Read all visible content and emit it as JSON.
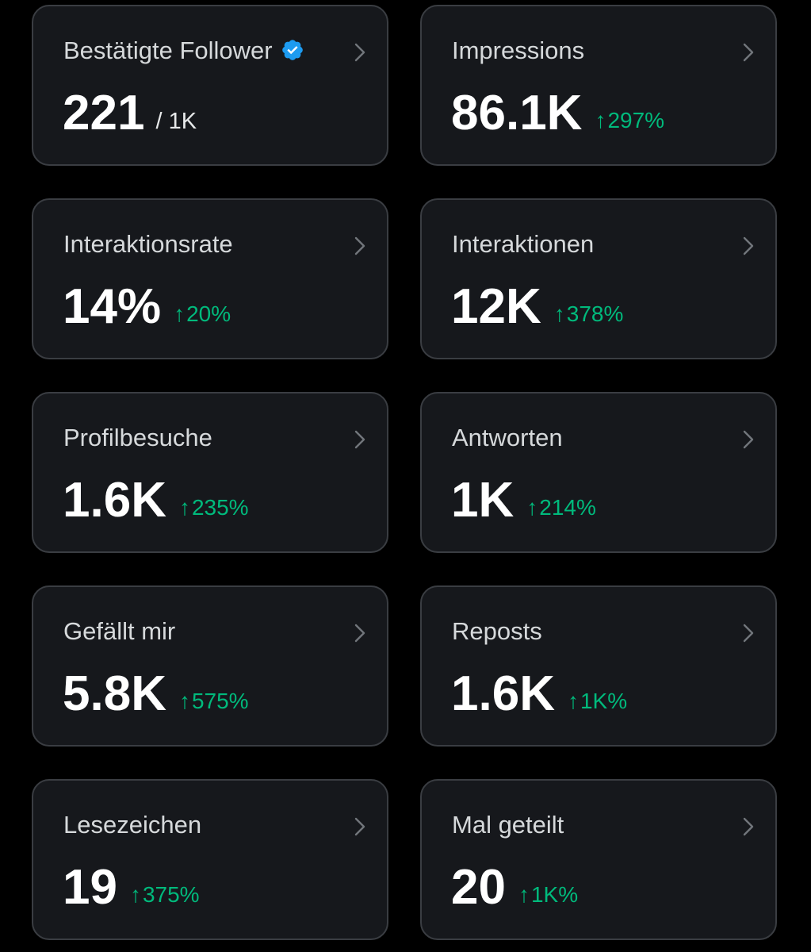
{
  "theme": {
    "background": "#000000",
    "card_bg": "#16181c",
    "card_border": "#3a3d42",
    "positive": "#00ba7c",
    "verified": "#1d9bf0"
  },
  "cards": [
    {
      "title": "Bestätigte Follower",
      "value": "221",
      "sub": "/ 1K",
      "verified": true,
      "icon": "chevron-right-icon"
    },
    {
      "title": "Impressions",
      "value": "86.1K",
      "change": "297%",
      "arrow": "↑",
      "icon": "chevron-right-icon"
    },
    {
      "title": "Interaktionsrate",
      "value": "14%",
      "change": "20%",
      "arrow": "↑",
      "icon": "chevron-right-icon"
    },
    {
      "title": "Interaktionen",
      "value": "12K",
      "change": "378%",
      "arrow": "↑",
      "icon": "chevron-right-icon"
    },
    {
      "title": "Profilbesuche",
      "value": "1.6K",
      "change": "235%",
      "arrow": "↑",
      "icon": "chevron-right-icon"
    },
    {
      "title": "Antworten",
      "value": "1K",
      "change": "214%",
      "arrow": "↑",
      "icon": "chevron-right-icon"
    },
    {
      "title": "Gefällt mir",
      "value": "5.8K",
      "change": "575%",
      "arrow": "↑",
      "icon": "chevron-right-icon"
    },
    {
      "title": "Reposts",
      "value": "1.6K",
      "change": "1K%",
      "arrow": "↑",
      "icon": "chevron-right-icon"
    },
    {
      "title": "Lesezeichen",
      "value": "19",
      "change": "375%",
      "arrow": "↑",
      "icon": "chevron-right-icon"
    },
    {
      "title": "Mal geteilt",
      "value": "20",
      "change": "1K%",
      "arrow": "↑",
      "icon": "chevron-right-icon"
    }
  ]
}
